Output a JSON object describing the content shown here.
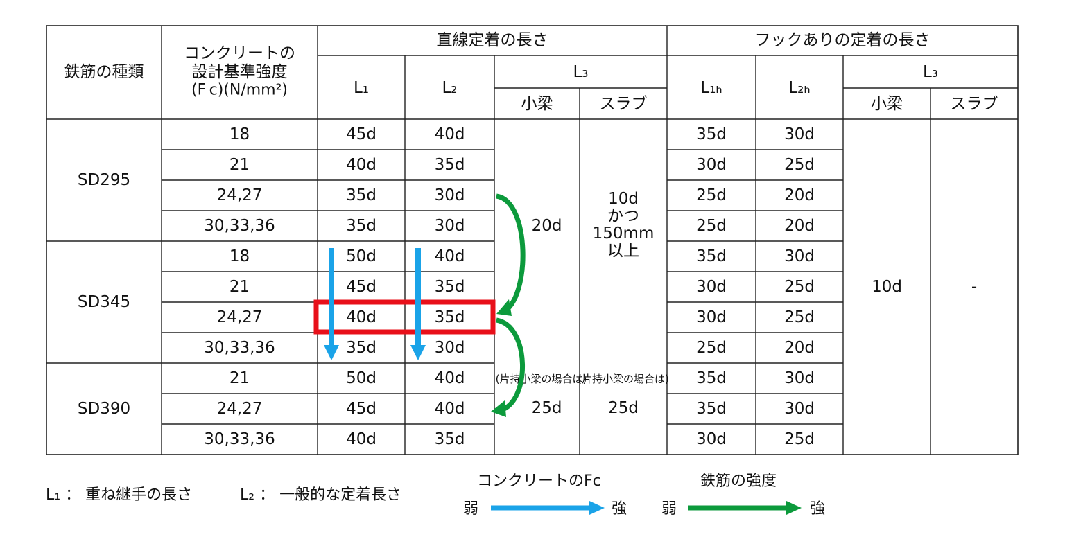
{
  "header": {
    "steel_type": "鉄筋の種類",
    "concrete_strength": [
      "コンクリートの",
      "設計基準強度",
      "(F c)(N/mm²)"
    ],
    "straight_anchorage": "直線定着の長さ",
    "hook_anchorage": "フックありの定着の長さ",
    "l1": "L₁",
    "l2": "L₂",
    "l3": "L₃",
    "l1h": "L₁ₕ",
    "l2h": "L₂ₕ",
    "small_beam": "小梁",
    "slab": "スラブ"
  },
  "groups": [
    {
      "steel": "SD295",
      "rows": [
        {
          "fc": "18",
          "l1": "45d",
          "l2": "40d",
          "l1h": "35d",
          "l2h": "30d"
        },
        {
          "fc": "21",
          "l1": "40d",
          "l2": "35d",
          "l1h": "30d",
          "l2h": "25d"
        },
        {
          "fc": "24,27",
          "l1": "35d",
          "l2": "30d",
          "l1h": "25d",
          "l2h": "20d"
        },
        {
          "fc": "30,33,36",
          "l1": "35d",
          "l2": "30d",
          "l1h": "25d",
          "l2h": "20d"
        }
      ]
    },
    {
      "steel": "SD345",
      "rows": [
        {
          "fc": "18",
          "l1": "50d",
          "l2": "40d",
          "l1h": "35d",
          "l2h": "30d"
        },
        {
          "fc": "21",
          "l1": "45d",
          "l2": "35d",
          "l1h": "30d",
          "l2h": "25d"
        },
        {
          "fc": "24,27",
          "l1": "40d",
          "l2": "35d",
          "l1h": "30d",
          "l2h": "25d"
        },
        {
          "fc": "30,33,36",
          "l1": "35d",
          "l2": "30d",
          "l1h": "25d",
          "l2h": "20d"
        }
      ]
    },
    {
      "steel": "SD390",
      "rows": [
        {
          "fc": "21",
          "l1": "50d",
          "l2": "40d",
          "l1h": "35d",
          "l2h": "30d"
        },
        {
          "fc": "24,27",
          "l1": "45d",
          "l2": "40d",
          "l1h": "35d",
          "l2h": "30d"
        },
        {
          "fc": "30,33,36",
          "l1": "40d",
          "l2": "35d",
          "l1h": "30d",
          "l2h": "25d"
        }
      ]
    }
  ],
  "l3_straight": {
    "small_beam": "20d",
    "slab_lines": [
      "10d",
      "かつ",
      "150mm",
      "以上"
    ],
    "cantilever_note": "(片持小梁の場合は)",
    "cantilever_small_beam": "25d",
    "cantilever_slab": "25d"
  },
  "l3_hook": {
    "small_beam": "10d",
    "slab": "-"
  },
  "legend": {
    "l1_def": "L₁ ： 重ね継手の長さ",
    "l2_def": "L₂ ： 一般的な定着長さ",
    "fc_title": "コンクリートのFc",
    "steel_title": "鉄筋の強度",
    "weak": "弱",
    "strong": "強"
  },
  "colors": {
    "blue_arrow": "#1aa3e8",
    "green_arrow": "#0c9a3c",
    "highlight": "#e8101a"
  }
}
